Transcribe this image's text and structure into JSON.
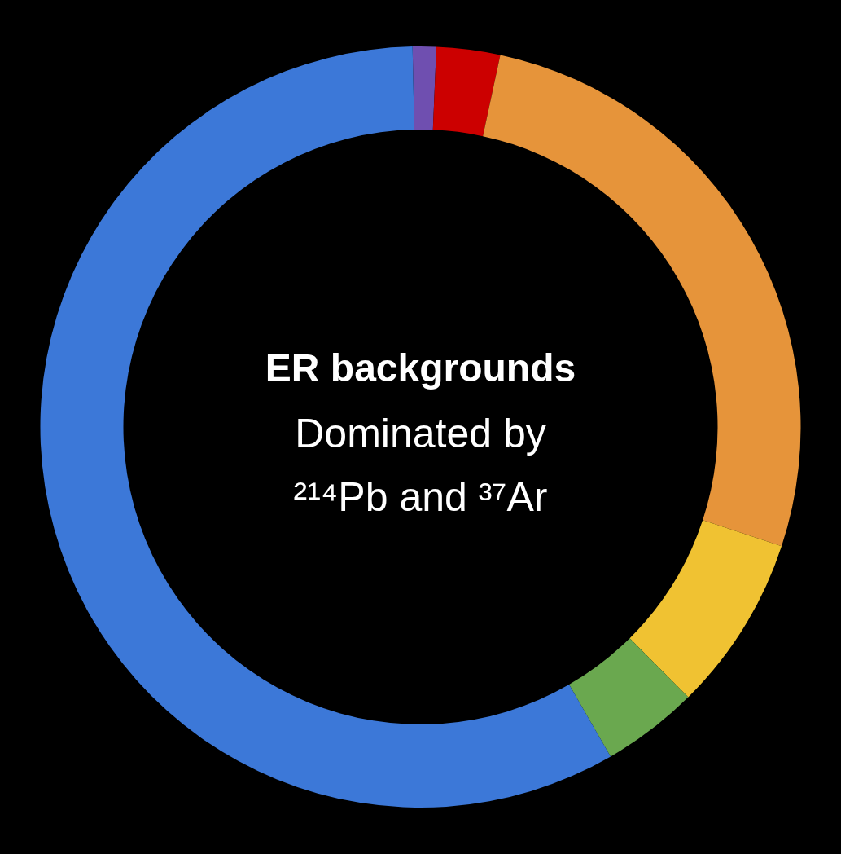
{
  "chart_data": {
    "type": "donut",
    "title": "ER backgrounds",
    "subtitle": "Dominated by ²¹⁴Pb and ³⁷Ar",
    "categories": [
      null,
      null,
      null,
      null,
      null,
      null
    ],
    "values": [
      1.0,
      2.7,
      26.7,
      7.5,
      4.1,
      58.0
    ],
    "colors": [
      "#6f4fb0",
      "#cc0000",
      "#e6943a",
      "#f0c232",
      "#6aa84f",
      "#3c78d8"
    ]
  }
}
